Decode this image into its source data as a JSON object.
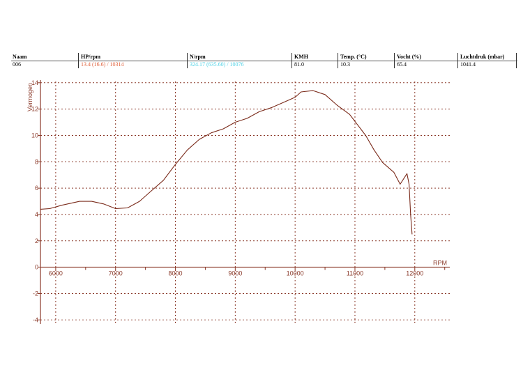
{
  "header": {
    "columns": [
      {
        "label": "Naam",
        "value": "006"
      },
      {
        "label": "HP/rpm",
        "value": "13.4 (16.6) / 10314",
        "color": "#e0603a"
      },
      {
        "label": "N/rpm",
        "value": "324.17 (635.60) / 10076",
        "color": "#4fd2e6"
      },
      {
        "label": "KMH",
        "value": "81.0"
      },
      {
        "label": "Temp. (°C)",
        "value": "10.3"
      },
      {
        "label": "Vocht (%)",
        "value": "65.4"
      },
      {
        "label": "Luchtdruk (mbar)",
        "value": "1041.4"
      }
    ]
  },
  "chart_data": {
    "type": "line",
    "title": "",
    "xlabel": "RPM",
    "ylabel": "Vermogen",
    "xlim": [
      5745,
      12585
    ],
    "ylim": [
      -4.3,
      14.2
    ],
    "grid": true,
    "x_ticks": [
      6000,
      7000,
      8000,
      9000,
      10000,
      11000,
      12000
    ],
    "y_ticks": [
      -4,
      -2,
      0,
      2,
      4,
      6,
      8,
      10,
      12,
      14
    ],
    "colors": {
      "axis": "#8b3a2a",
      "line": "#7a2a1a",
      "grid": "#8b3a2a"
    },
    "series": [
      {
        "x": [
          5750,
          5900,
          6100,
          6200,
          6400,
          6600,
          6800,
          7000,
          7200,
          7400,
          7600,
          7800,
          8000,
          8200,
          8400,
          8600,
          8800,
          9000,
          9200,
          9400,
          9600,
          9800,
          10000,
          10100,
          10300,
          10500,
          10700,
          10910,
          11180,
          11320,
          11460,
          11650,
          11755,
          11870,
          11905,
          11930,
          11955
        ],
        "y": [
          4.4,
          4.45,
          4.7,
          4.8,
          5.0,
          5.0,
          4.8,
          4.45,
          4.5,
          5.0,
          5.8,
          6.6,
          7.8,
          8.9,
          9.7,
          10.2,
          10.5,
          11.0,
          11.3,
          11.8,
          12.1,
          12.5,
          12.9,
          13.3,
          13.4,
          13.1,
          12.3,
          11.6,
          10.0,
          8.9,
          7.95,
          7.2,
          6.3,
          7.1,
          6.3,
          4.0,
          2.5
        ]
      }
    ]
  }
}
